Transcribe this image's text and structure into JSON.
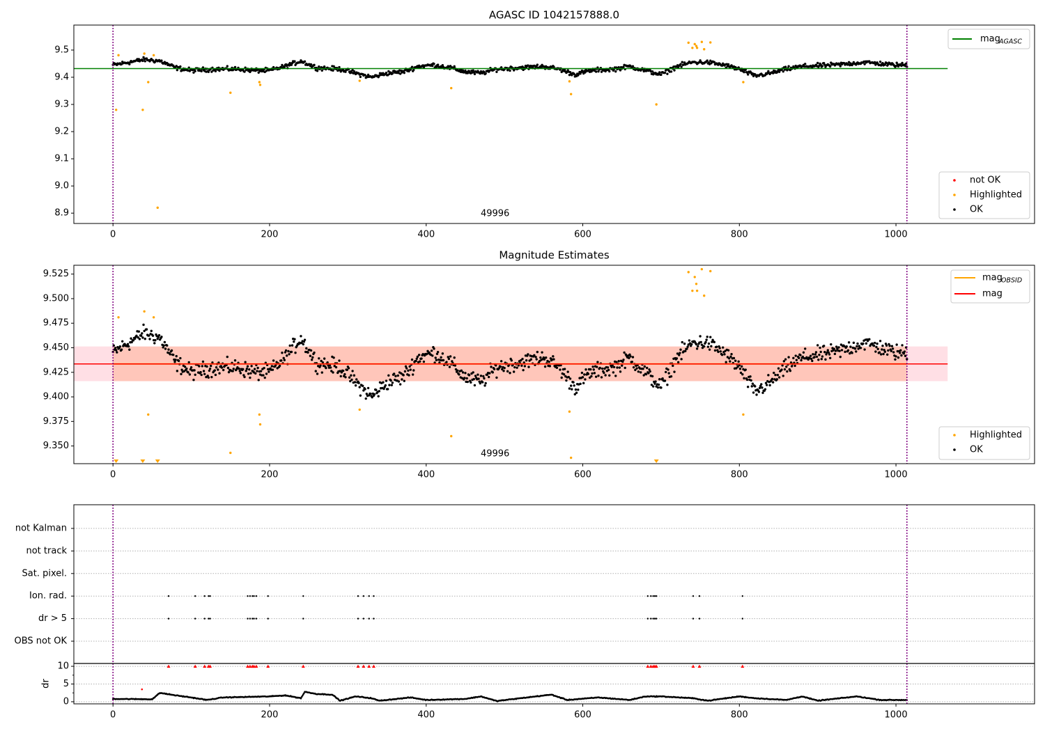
{
  "chart_data": {
    "type": "scatter",
    "x_ticks": [
      0,
      200,
      400,
      600,
      800,
      1000
    ],
    "xlim": [
      -50,
      1177
    ],
    "obs_bounds": [
      0,
      1014
    ],
    "obsid_label": "49996",
    "obsid_label_x": 488,
    "n_points": 1015,
    "noise_amplitude": 0.012,
    "seed": 12345,
    "colors": {
      "ok": "#000000",
      "highlighted": "#ffa500",
      "not_ok": "#ff0000",
      "agasc": "#008000",
      "mag_obsid": "#ffa500",
      "mag": "#ff0000",
      "bounds": "#800080",
      "band_outer": "#ffc0cb",
      "band_inner": "#ffa07a"
    },
    "trend_knots": [
      [
        0,
        9.445
      ],
      [
        20,
        9.455
      ],
      [
        40,
        9.465
      ],
      [
        60,
        9.46
      ],
      [
        80,
        9.435
      ],
      [
        100,
        9.425
      ],
      [
        130,
        9.43
      ],
      [
        160,
        9.43
      ],
      [
        180,
        9.425
      ],
      [
        200,
        9.425
      ],
      [
        220,
        9.44
      ],
      [
        240,
        9.46
      ],
      [
        260,
        9.435
      ],
      [
        290,
        9.43
      ],
      [
        310,
        9.415
      ],
      [
        330,
        9.4
      ],
      [
        350,
        9.415
      ],
      [
        370,
        9.42
      ],
      [
        390,
        9.44
      ],
      [
        410,
        9.445
      ],
      [
        430,
        9.435
      ],
      [
        450,
        9.42
      ],
      [
        470,
        9.415
      ],
      [
        490,
        9.43
      ],
      [
        520,
        9.435
      ],
      [
        550,
        9.44
      ],
      [
        570,
        9.43
      ],
      [
        590,
        9.41
      ],
      [
        610,
        9.425
      ],
      [
        640,
        9.43
      ],
      [
        660,
        9.44
      ],
      [
        680,
        9.425
      ],
      [
        700,
        9.41
      ],
      [
        720,
        9.44
      ],
      [
        740,
        9.455
      ],
      [
        760,
        9.455
      ],
      [
        780,
        9.445
      ],
      [
        800,
        9.43
      ],
      [
        820,
        9.405
      ],
      [
        840,
        9.415
      ],
      [
        860,
        9.43
      ],
      [
        880,
        9.44
      ],
      [
        920,
        9.445
      ],
      [
        960,
        9.455
      ],
      [
        1000,
        9.445
      ],
      [
        1014,
        9.445
      ]
    ],
    "highlighted": [
      [
        4,
        9.28
      ],
      [
        7,
        9.481
      ],
      [
        38,
        9.28
      ],
      [
        40,
        9.487
      ],
      [
        45,
        9.382
      ],
      [
        52,
        9.481
      ],
      [
        57,
        8.92
      ],
      [
        150,
        9.343
      ],
      [
        187,
        9.382
      ],
      [
        188,
        9.372
      ],
      [
        315,
        9.387
      ],
      [
        432,
        9.36
      ],
      [
        583,
        9.385
      ],
      [
        585,
        9.338
      ],
      [
        694,
        9.3
      ],
      [
        735,
        9.527
      ],
      [
        740,
        9.508
      ],
      [
        743,
        9.522
      ],
      [
        745,
        9.515
      ],
      [
        746,
        9.508
      ],
      [
        752,
        9.53
      ],
      [
        755,
        9.503
      ],
      [
        763,
        9.528
      ],
      [
        805,
        9.382
      ]
    ],
    "flag_x": [
      71,
      105,
      117,
      122,
      124,
      172,
      175,
      178,
      180,
      183,
      198,
      243,
      313,
      320,
      327,
      333,
      683,
      687,
      690,
      692,
      694,
      741,
      749,
      804
    ],
    "dr_knots": [
      [
        0,
        0.8
      ],
      [
        50,
        0.7
      ],
      [
        60,
        2.5
      ],
      [
        80,
        1.8
      ],
      [
        100,
        1.2
      ],
      [
        120,
        0.5
      ],
      [
        140,
        1.2
      ],
      [
        200,
        1.5
      ],
      [
        220,
        1.8
      ],
      [
        240,
        1.0
      ],
      [
        245,
        2.8
      ],
      [
        260,
        2.2
      ],
      [
        280,
        2.0
      ],
      [
        290,
        0.3
      ],
      [
        310,
        1.5
      ],
      [
        330,
        1.0
      ],
      [
        340,
        0.3
      ],
      [
        380,
        1.2
      ],
      [
        400,
        0.5
      ],
      [
        450,
        0.8
      ],
      [
        470,
        1.5
      ],
      [
        490,
        0.2
      ],
      [
        540,
        1.5
      ],
      [
        560,
        2.0
      ],
      [
        580,
        0.5
      ],
      [
        620,
        1.2
      ],
      [
        660,
        0.5
      ],
      [
        680,
        1.5
      ],
      [
        700,
        1.5
      ],
      [
        740,
        1.0
      ],
      [
        760,
        0.3
      ],
      [
        800,
        1.5
      ],
      [
        820,
        1.0
      ],
      [
        860,
        0.5
      ],
      [
        880,
        1.5
      ],
      [
        900,
        0.3
      ],
      [
        950,
        1.5
      ],
      [
        980,
        0.5
      ],
      [
        1014,
        0.5
      ]
    ],
    "dr_not_ok": [
      [
        37,
        3.5
      ]
    ],
    "panels": [
      {
        "title": "AGASC ID 1042157888.0",
        "ylim": [
          8.862,
          9.592
        ],
        "y_ticks": [
          "8.9",
          "9.0",
          "9.1",
          "9.2",
          "9.3",
          "9.4",
          "9.5"
        ],
        "agasc_mag": 9.432,
        "line_legend": [
          {
            "label": "mag",
            "sub": "AGASC"
          }
        ],
        "point_legend": [
          "not OK",
          "Highlighted",
          "OK"
        ]
      },
      {
        "title": "Magnitude Estimates",
        "ylim": [
          9.332,
          9.534
        ],
        "y_ticks": [
          "9.350",
          "9.375",
          "9.400",
          "9.425",
          "9.450",
          "9.475",
          "9.500",
          "9.525"
        ],
        "mag": 9.4335,
        "band_low": 9.416,
        "band_high": 9.4513,
        "line_legend": [
          {
            "label": "mag",
            "sub": "OBSID"
          },
          {
            "label": "mag",
            "sub": ""
          }
        ],
        "point_legend": [
          "Highlighted",
          "OK"
        ]
      },
      {
        "flag_labels": [
          "OBS not OK",
          "dr > 5",
          "Ion. rad.",
          "Sat. pixel.",
          "not track",
          "not Kalman"
        ],
        "flags_with_hits": [
          "dr > 5",
          "Ion. rad."
        ]
      },
      {
        "ylabel": "dr",
        "ylim": [
          -0.6,
          10.8
        ],
        "y_ticks": [
          "0",
          "5",
          "10"
        ],
        "clip_value": 10
      }
    ]
  }
}
